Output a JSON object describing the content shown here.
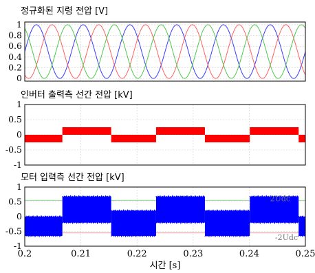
{
  "chart_data": [
    {
      "type": "line",
      "title": "정규화된 지령 전압 [V]",
      "ylim": [
        -0.05,
        1.05
      ],
      "yticks": [
        0,
        0.2,
        0.4,
        0.6,
        0.8,
        1
      ],
      "ytick_labels": [
        "0",
        "0.2",
        "0.4",
        "0.6",
        "0.8",
        "1"
      ],
      "x_range": [
        0.2,
        0.25
      ],
      "series": [
        {
          "color": "#3a3aff",
          "frequency_hz": 120,
          "phase_deg": 0
        },
        {
          "color": "#ff6060",
          "frequency_hz": 120,
          "phase_deg": -120
        },
        {
          "color": "#4ec84e",
          "frequency_hz": 120,
          "phase_deg": 120
        }
      ],
      "amplitude": 0.5,
      "offset": 0.5,
      "grid": true
    },
    {
      "type": "line",
      "title": "인버터 출력측 선간 전압 [kV]",
      "ylim": [
        -1,
        1
      ],
      "yticks": [
        -1,
        -0.5,
        0,
        0.5,
        1
      ],
      "ytick_labels": [
        "-1",
        "-0.5",
        "0",
        "0.5",
        "1"
      ],
      "x_range": [
        0.2,
        0.25
      ],
      "color": "#ff0000",
      "segments": [
        {
          "x0": 0.2,
          "x1": 0.2067,
          "ylo": -0.25,
          "yhi": 0.0
        },
        {
          "x0": 0.2067,
          "x1": 0.2154,
          "ylo": 0.0,
          "yhi": 0.25
        },
        {
          "x0": 0.2154,
          "x1": 0.2234,
          "ylo": -0.25,
          "yhi": 0.0
        },
        {
          "x0": 0.2234,
          "x1": 0.2321,
          "ylo": 0.0,
          "yhi": 0.25
        },
        {
          "x0": 0.2321,
          "x1": 0.2401,
          "ylo": -0.25,
          "yhi": 0.0
        },
        {
          "x0": 0.2401,
          "x1": 0.2488,
          "ylo": 0.0,
          "yhi": 0.25
        },
        {
          "x0": 0.2488,
          "x1": 0.25,
          "ylo": -0.25,
          "yhi": 0.0
        }
      ],
      "grid": true
    },
    {
      "type": "line",
      "title": "모터 입력측 선간 전압 [kV]",
      "ylim": [
        -1,
        1
      ],
      "yticks": [
        -1,
        -0.5,
        0,
        0.5,
        1
      ],
      "ytick_labels": [
        "-1",
        "-0.5",
        "0",
        "0.5",
        "1"
      ],
      "x_range": [
        0.2,
        0.25
      ],
      "xticks": [
        0.2,
        0.21,
        0.22,
        0.23,
        0.24,
        0.25
      ],
      "xtick_labels": [
        "0.2",
        "0.21",
        "0.22",
        "0.23",
        "0.24",
        "0.25"
      ],
      "xlabel": "시간 [s]",
      "color": "#0000ff",
      "reference_lines": [
        {
          "value": 0.55,
          "color": "#88dd88"
        },
        {
          "value": -0.55,
          "color": "#ff9999"
        }
      ],
      "annotations": [
        {
          "text": "2Udc",
          "x": 0.2437,
          "y": 0.62
        },
        {
          "text": "-2Udc",
          "x": 0.2446,
          "y": -0.7
        }
      ],
      "envelope": [
        {
          "x0": 0.2,
          "x1": 0.2067,
          "ylo": -0.65,
          "yhi": 0.0
        },
        {
          "x0": 0.2067,
          "x1": 0.2154,
          "ylo": -0.2,
          "yhi": 0.68
        },
        {
          "x0": 0.2154,
          "x1": 0.2234,
          "ylo": -0.65,
          "yhi": 0.2
        },
        {
          "x0": 0.2234,
          "x1": 0.2321,
          "ylo": -0.2,
          "yhi": 0.68
        },
        {
          "x0": 0.2321,
          "x1": 0.2401,
          "ylo": -0.65,
          "yhi": 0.2
        },
        {
          "x0": 0.2401,
          "x1": 0.2488,
          "ylo": -0.2,
          "yhi": 0.68
        },
        {
          "x0": 0.2488,
          "x1": 0.25,
          "ylo": -0.65,
          "yhi": 0.0
        }
      ],
      "grid": true
    }
  ]
}
